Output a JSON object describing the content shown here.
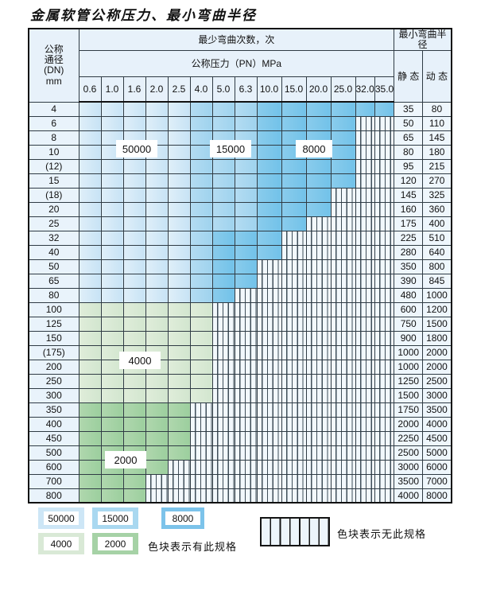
{
  "title": "金属软管公称压力、最小弯曲半径",
  "header": {
    "dn_lines": [
      "公称",
      "通径",
      "(DN)",
      "mm"
    ],
    "cycles_header": "最少弯曲次数，次",
    "pressure_header": "公称压力（PN）MPa",
    "radius_header": "最小弯曲半径",
    "static_label": "静 态",
    "dynamic_label": "动 态"
  },
  "pressures": [
    "0.6",
    "1.0",
    "1.6",
    "2.0",
    "2.5",
    "4.0",
    "5.0",
    "6.3",
    "10.0",
    "15.0",
    "20.0",
    "25.0",
    "32.0",
    "35.0"
  ],
  "palette": {
    "50000": "#cde6f6",
    "15000": "#a9d8f0",
    "8000": "#7cc3ea",
    "4000": "#d9e9d6",
    "2000": "#a6d2a6"
  },
  "band_labels": {
    "b50000": "50000",
    "b15000": "15000",
    "b8000": "8000",
    "b4000": "4000",
    "b2000": "2000"
  },
  "rows": [
    {
      "dn": "4",
      "static": "35",
      "dynamic": "80",
      "cycles": [
        50000,
        50000,
        50000,
        50000,
        50000,
        15000,
        15000,
        15000,
        8000,
        8000,
        8000,
        8000,
        8000,
        8000
      ]
    },
    {
      "dn": "6",
      "static": "50",
      "dynamic": "110",
      "cycles": [
        50000,
        50000,
        50000,
        50000,
        50000,
        15000,
        15000,
        15000,
        8000,
        8000,
        8000,
        8000,
        null,
        null
      ]
    },
    {
      "dn": "8",
      "static": "65",
      "dynamic": "145",
      "cycles": [
        50000,
        50000,
        50000,
        50000,
        50000,
        15000,
        15000,
        15000,
        8000,
        8000,
        8000,
        8000,
        null,
        null
      ]
    },
    {
      "dn": "10",
      "static": "80",
      "dynamic": "180",
      "cycles": [
        50000,
        50000,
        50000,
        50000,
        50000,
        15000,
        15000,
        15000,
        8000,
        8000,
        8000,
        8000,
        null,
        null
      ]
    },
    {
      "dn": "(12)",
      "static": "95",
      "dynamic": "215",
      "cycles": [
        50000,
        50000,
        50000,
        50000,
        50000,
        15000,
        15000,
        15000,
        8000,
        8000,
        8000,
        8000,
        null,
        null
      ]
    },
    {
      "dn": "15",
      "static": "120",
      "dynamic": "270",
      "cycles": [
        50000,
        50000,
        50000,
        50000,
        50000,
        15000,
        15000,
        15000,
        8000,
        8000,
        8000,
        8000,
        null,
        null
      ]
    },
    {
      "dn": "(18)",
      "static": "145",
      "dynamic": "325",
      "cycles": [
        50000,
        50000,
        50000,
        50000,
        50000,
        15000,
        15000,
        15000,
        8000,
        8000,
        8000,
        null,
        null,
        null
      ]
    },
    {
      "dn": "20",
      "static": "160",
      "dynamic": "360",
      "cycles": [
        50000,
        50000,
        50000,
        50000,
        50000,
        15000,
        15000,
        15000,
        8000,
        8000,
        8000,
        null,
        null,
        null
      ]
    },
    {
      "dn": "25",
      "static": "175",
      "dynamic": "400",
      "cycles": [
        50000,
        50000,
        50000,
        50000,
        50000,
        15000,
        15000,
        15000,
        8000,
        8000,
        null,
        null,
        null,
        null
      ]
    },
    {
      "dn": "32",
      "static": "225",
      "dynamic": "510",
      "cycles": [
        50000,
        50000,
        50000,
        50000,
        50000,
        15000,
        8000,
        8000,
        8000,
        null,
        null,
        null,
        null,
        null
      ]
    },
    {
      "dn": "40",
      "static": "280",
      "dynamic": "640",
      "cycles": [
        50000,
        50000,
        50000,
        50000,
        50000,
        15000,
        8000,
        8000,
        8000,
        null,
        null,
        null,
        null,
        null
      ]
    },
    {
      "dn": "50",
      "static": "350",
      "dynamic": "800",
      "cycles": [
        50000,
        50000,
        50000,
        50000,
        50000,
        15000,
        8000,
        8000,
        null,
        null,
        null,
        null,
        null,
        null
      ]
    },
    {
      "dn": "65",
      "static": "390",
      "dynamic": "845",
      "cycles": [
        50000,
        50000,
        50000,
        50000,
        50000,
        15000,
        8000,
        8000,
        null,
        null,
        null,
        null,
        null,
        null
      ]
    },
    {
      "dn": "80",
      "static": "480",
      "dynamic": "1000",
      "cycles": [
        50000,
        50000,
        50000,
        50000,
        50000,
        15000,
        8000,
        null,
        null,
        null,
        null,
        null,
        null,
        null
      ]
    },
    {
      "dn": "100",
      "static": "600",
      "dynamic": "1200",
      "cycles": [
        4000,
        4000,
        4000,
        4000,
        4000,
        4000,
        null,
        null,
        null,
        null,
        null,
        null,
        null,
        null
      ]
    },
    {
      "dn": "125",
      "static": "750",
      "dynamic": "1500",
      "cycles": [
        4000,
        4000,
        4000,
        4000,
        4000,
        4000,
        null,
        null,
        null,
        null,
        null,
        null,
        null,
        null
      ]
    },
    {
      "dn": "150",
      "static": "900",
      "dynamic": "1800",
      "cycles": [
        4000,
        4000,
        4000,
        4000,
        4000,
        4000,
        null,
        null,
        null,
        null,
        null,
        null,
        null,
        null
      ]
    },
    {
      "dn": "(175)",
      "static": "1000",
      "dynamic": "2000",
      "cycles": [
        4000,
        4000,
        4000,
        4000,
        4000,
        4000,
        null,
        null,
        null,
        null,
        null,
        null,
        null,
        null
      ]
    },
    {
      "dn": "200",
      "static": "1000",
      "dynamic": "2000",
      "cycles": [
        4000,
        4000,
        4000,
        4000,
        4000,
        4000,
        null,
        null,
        null,
        null,
        null,
        null,
        null,
        null
      ]
    },
    {
      "dn": "250",
      "static": "1250",
      "dynamic": "2500",
      "cycles": [
        4000,
        4000,
        4000,
        4000,
        4000,
        4000,
        null,
        null,
        null,
        null,
        null,
        null,
        null,
        null
      ]
    },
    {
      "dn": "300",
      "static": "1500",
      "dynamic": "3000",
      "cycles": [
        4000,
        4000,
        4000,
        4000,
        4000,
        4000,
        null,
        null,
        null,
        null,
        null,
        null,
        null,
        null
      ]
    },
    {
      "dn": "350",
      "static": "1750",
      "dynamic": "3500",
      "cycles": [
        2000,
        2000,
        2000,
        2000,
        2000,
        null,
        null,
        null,
        null,
        null,
        null,
        null,
        null,
        null
      ]
    },
    {
      "dn": "400",
      "static": "2000",
      "dynamic": "4000",
      "cycles": [
        2000,
        2000,
        2000,
        2000,
        2000,
        null,
        null,
        null,
        null,
        null,
        null,
        null,
        null,
        null
      ]
    },
    {
      "dn": "450",
      "static": "2250",
      "dynamic": "4500",
      "cycles": [
        2000,
        2000,
        2000,
        2000,
        2000,
        null,
        null,
        null,
        null,
        null,
        null,
        null,
        null,
        null
      ]
    },
    {
      "dn": "500",
      "static": "2500",
      "dynamic": "5000",
      "cycles": [
        2000,
        2000,
        2000,
        2000,
        2000,
        null,
        null,
        null,
        null,
        null,
        null,
        null,
        null,
        null
      ]
    },
    {
      "dn": "600",
      "static": "3000",
      "dynamic": "6000",
      "cycles": [
        2000,
        2000,
        2000,
        2000,
        null,
        null,
        null,
        null,
        null,
        null,
        null,
        null,
        null,
        null
      ]
    },
    {
      "dn": "700",
      "static": "3500",
      "dynamic": "7000",
      "cycles": [
        2000,
        2000,
        2000,
        null,
        null,
        null,
        null,
        null,
        null,
        null,
        null,
        null,
        null,
        null
      ]
    },
    {
      "dn": "800",
      "static": "4000",
      "dynamic": "8000",
      "cycles": [
        2000,
        2000,
        2000,
        null,
        null,
        null,
        null,
        null,
        null,
        null,
        null,
        null,
        null,
        null
      ]
    }
  ],
  "legend": {
    "items": [
      {
        "value": "50000"
      },
      {
        "value": "15000"
      },
      {
        "value": "8000"
      },
      {
        "value": "4000"
      },
      {
        "value": "2000"
      }
    ],
    "available_text": "色块表示有此规格",
    "unavailable_text": "色块表示无此规格"
  }
}
